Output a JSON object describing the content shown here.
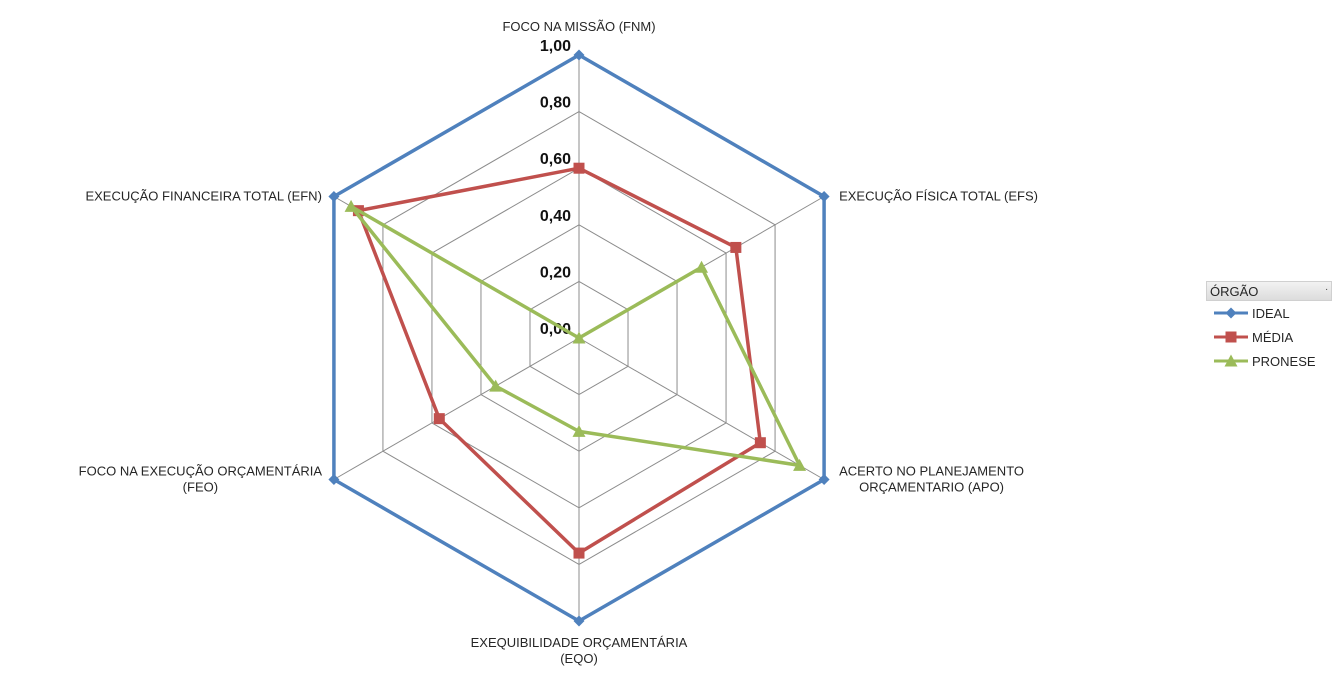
{
  "chart_data": {
    "type": "radar",
    "title": "",
    "categories": [
      "FOCO NA MISSÃO (FNM)",
      "EXECUÇÃO FÍSICA TOTAL (EFS)",
      "ACERTO NO PLANEJAMENTO ORÇAMENTARIO (APO)",
      "EXEQUIBILIDADE ORÇAMENTÁRIA (EQO)",
      "FOCO NA EXECUÇÃO ORÇAMENTÁRIA (FEO)",
      "EXECUÇÃO FINANCEIRA TOTAL (EFN)"
    ],
    "category_lines": [
      [
        "FOCO NA MISSÃO (FNM)"
      ],
      [
        "EXECUÇÃO FÍSICA TOTAL (EFS)"
      ],
      [
        "ACERTO NO PLANEJAMENTO",
        "ORÇAMENTARIO (APO)"
      ],
      [
        "EXEQUIBILIDADE ORÇAMENTÁRIA",
        "(EQO)"
      ],
      [
        "FOCO NA EXECUÇÃO ORÇAMENTÁRIA",
        "(FEO)"
      ],
      [
        "EXECUÇÃO FINANCEIRA TOTAL (EFN)"
      ]
    ],
    "radial_ticks": [
      "0,00",
      "0,20",
      "0,40",
      "0,60",
      "0,80",
      "1,00"
    ],
    "radial_tick_values": [
      0,
      0.2,
      0.4,
      0.6,
      0.8,
      1.0
    ],
    "rlim": [
      0,
      1
    ],
    "grid": true,
    "legend_position": "right",
    "legend_title": "ÓRGÃO",
    "legend_dropdown_glyph": ".",
    "series": [
      {
        "name": "IDEAL",
        "color": "#4F81BD",
        "marker": "diamond",
        "values": [
          1.0,
          1.0,
          1.0,
          1.0,
          1.0,
          1.0
        ]
      },
      {
        "name": "MÉDIA",
        "color": "#C0504D",
        "marker": "square",
        "values": [
          0.6,
          0.64,
          0.74,
          0.76,
          0.57,
          0.9
        ]
      },
      {
        "name": "PRONESE",
        "color": "#9BBB59",
        "marker": "triangle",
        "values": [
          0.0,
          0.5,
          0.9,
          0.33,
          0.34,
          0.93
        ]
      }
    ]
  }
}
